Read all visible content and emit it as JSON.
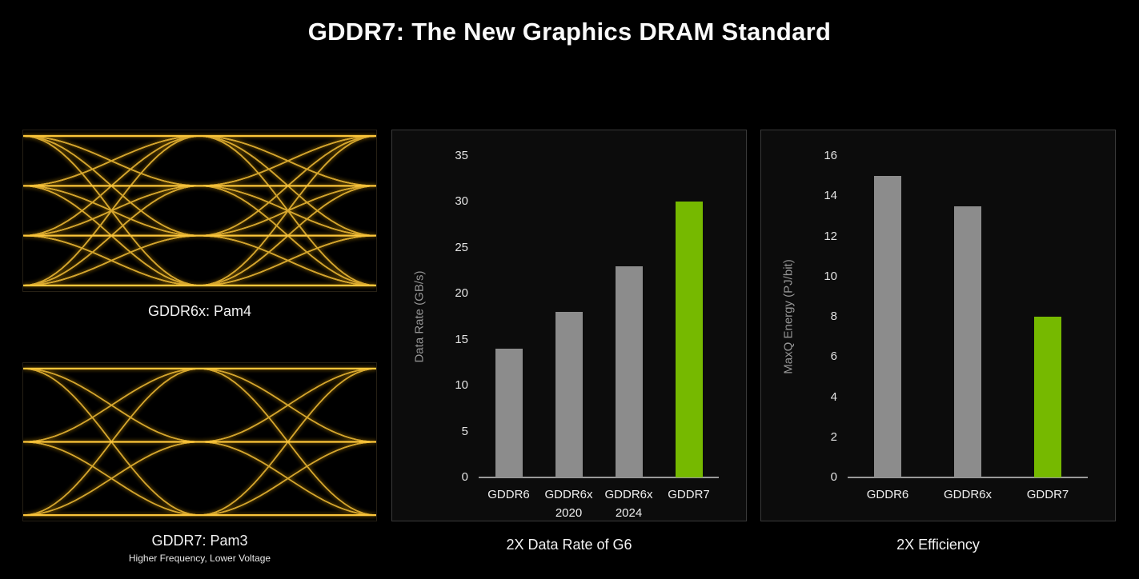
{
  "title": "GDDR7: The New Graphics DRAM Standard",
  "colors": {
    "background": "#000000",
    "accent_green": "#76B900",
    "bar_gray": "#8C8C8C",
    "panel_bg": "#0C0C0C",
    "panel_border": "#3A3A3A",
    "axis_line": "#9A9A9A",
    "tick_text": "#E3E3E3",
    "axis_label_text": "#969696",
    "caption_text": "#F2F2F2",
    "trace_amber": "#FFC83C",
    "trace_glow": "#9A6E00"
  },
  "eye_diagrams": [
    {
      "modulation": "PAM4",
      "levels": 4,
      "eyes": 3,
      "caption": "GDDR6x: Pam4",
      "subcaption": ""
    },
    {
      "modulation": "PAM3",
      "levels": 3,
      "eyes": 2,
      "caption": "GDDR7: Pam3",
      "subcaption": "Higher Frequency, Lower Voltage"
    }
  ],
  "chart_data": [
    {
      "type": "bar",
      "title": "2X Data Rate of G6",
      "xlabel": "",
      "ylabel": "Data Rate (GB/s)",
      "categories": [
        "GDDR6",
        "GDDR6x\n2020",
        "GDDR6x\n2024",
        "GDDR7"
      ],
      "values": [
        14,
        18,
        23,
        30
      ],
      "bar_colors": [
        "#8C8C8C",
        "#8C8C8C",
        "#8C8C8C",
        "#76B900"
      ],
      "ylim": [
        0,
        35
      ],
      "ytick_step": 5,
      "grid": false,
      "legend": "none"
    },
    {
      "type": "bar",
      "title": "2X Efficiency",
      "xlabel": "",
      "ylabel": "MaxQ Energy (PJ/bit)",
      "categories": [
        "GDDR6",
        "GDDR6x",
        "GDDR7"
      ],
      "values": [
        15,
        13.5,
        8
      ],
      "bar_colors": [
        "#8C8C8C",
        "#8C8C8C",
        "#76B900"
      ],
      "ylim": [
        0,
        16
      ],
      "ytick_step": 2,
      "grid": false,
      "legend": "none"
    }
  ]
}
